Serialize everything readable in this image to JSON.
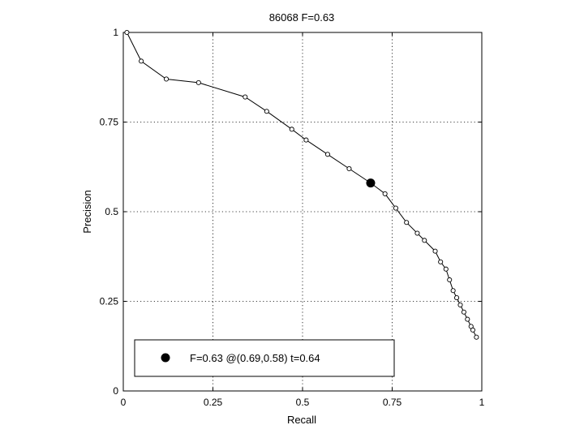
{
  "chart_data": {
    "type": "line",
    "title": "86068 F=0.63",
    "xlabel": "Recall",
    "ylabel": "Precision",
    "xlim": [
      0,
      1
    ],
    "ylim": [
      0,
      1
    ],
    "xticks": [
      0,
      0.25,
      0.5,
      0.75,
      1
    ],
    "yticks": [
      0,
      0.25,
      0.5,
      0.75,
      1
    ],
    "xtick_labels": [
      "0",
      "0.25",
      "0.5",
      "0.75",
      "1"
    ],
    "ytick_labels": [
      "0",
      "0.25",
      "0.5",
      "0.75",
      "1"
    ],
    "grid": true,
    "legend_position": "bottom",
    "series": [
      {
        "marker": "open-circle",
        "x": [
          0.01,
          0.05,
          0.12,
          0.21,
          0.34,
          0.4,
          0.47,
          0.51,
          0.57,
          0.63,
          0.69,
          0.73,
          0.76,
          0.79,
          0.82,
          0.84,
          0.87,
          0.885,
          0.9,
          0.91,
          0.92,
          0.93,
          0.94,
          0.95,
          0.96,
          0.97,
          0.975,
          0.985
        ],
        "y": [
          1.0,
          0.92,
          0.87,
          0.86,
          0.82,
          0.78,
          0.73,
          0.7,
          0.66,
          0.62,
          0.58,
          0.55,
          0.51,
          0.47,
          0.44,
          0.42,
          0.39,
          0.36,
          0.34,
          0.31,
          0.28,
          0.26,
          0.24,
          0.22,
          0.2,
          0.18,
          0.17,
          0.15
        ]
      }
    ],
    "highlight_point": {
      "x": 0.69,
      "y": 0.58
    },
    "legend_text": "F=0.63 @(0.69,0.58) t=0.64"
  }
}
